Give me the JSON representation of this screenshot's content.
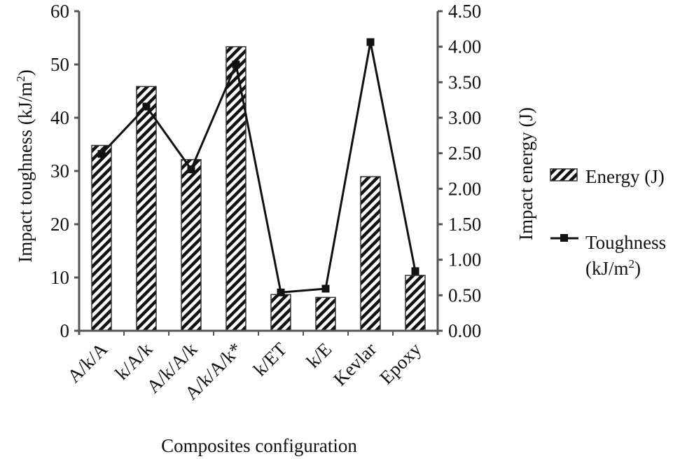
{
  "chart_data": {
    "type": "bar+line",
    "title": "",
    "xlabel": "Composites configuration",
    "ylabel_left": "Impact toughness (kJ/m2)",
    "ylabel_right": "Impact energy (J)",
    "categories": [
      "A/k/A",
      "k/A/k",
      "A/k/A/k",
      "A/k/A/k*",
      "k/ET",
      "k/E",
      "Kevlar",
      "Epoxy"
    ],
    "series": [
      {
        "name": "Energy (J)",
        "type": "bar",
        "axis": "right",
        "pattern": "diagonal-hatch",
        "values": [
          2.61,
          3.44,
          2.41,
          4.0,
          0.51,
          0.47,
          2.17,
          0.78
        ]
      },
      {
        "name": "Toughness (kJ/m2)",
        "type": "line",
        "axis": "left",
        "marker": "square",
        "values": [
          33.2,
          42.1,
          30.3,
          50.0,
          7.2,
          7.9,
          54.2,
          11.2
        ]
      }
    ],
    "ylim_left": [
      0,
      60
    ],
    "yticks_left": [
      "0",
      "10",
      "20",
      "30",
      "40",
      "50",
      "60"
    ],
    "ylim_right": [
      0,
      4.5
    ],
    "yticks_right": [
      "0.00",
      "0.50",
      "1.00",
      "1.50",
      "2.00",
      "2.50",
      "3.00",
      "3.50",
      "4.00",
      "4.50"
    ],
    "grid": false,
    "legend_position": "right"
  },
  "legend": {
    "energy_label": "Energy (J)",
    "toughness_label_line1": "Toughness",
    "toughness_label_line2_prefix": "(kJ/m",
    "toughness_label_sup": "2",
    "toughness_label_line2_suffix": ")"
  },
  "axes": {
    "left_title_prefix": "Impact toughness (kJ/m",
    "left_title_sup": "2",
    "left_title_suffix": ")",
    "right_title": "Impact energy (J)",
    "x_title": "Composites configuration"
  },
  "colors": {
    "axis": "#555555",
    "ink": "#111111",
    "background": "#ffffff"
  }
}
